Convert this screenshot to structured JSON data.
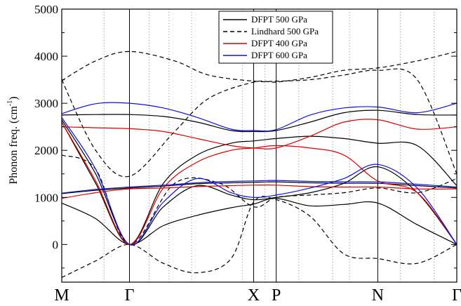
{
  "chart_data": {
    "type": "line",
    "ylabel_main": "Phonon freq. (cm",
    "ylabel_sup": "-1",
    "ylabel_close": ")",
    "ylim": [
      -800,
      5000
    ],
    "xlim": [
      0,
      6.2
    ],
    "yticks": [
      0,
      1000,
      2000,
      3000,
      4000,
      5000
    ],
    "grid": "dotted vertical lines",
    "legend_position": "top-center",
    "kpoints": [
      {
        "label": "M",
        "x": 0.0
      },
      {
        "label": "Γ",
        "x": 1.2
      },
      {
        "label": "X",
        "x": 3.4
      },
      {
        "label": "P",
        "x": 3.8
      },
      {
        "label": "N",
        "x": 5.6
      },
      {
        "label": "Γ",
        "x": 7.0
      }
    ],
    "minor_grid_x": [
      0.75,
      1.55,
      1.9,
      2.3,
      3.2,
      3.6,
      4.2,
      4.8,
      5.1,
      6.0,
      6.6
    ],
    "legend": [
      {
        "name": "DFPT 500 GPa",
        "color": "#000000",
        "dash": "solid"
      },
      {
        "name": "Lindhard 500 GPa",
        "color": "#000000",
        "dash": "dashed"
      },
      {
        "name": "DFPT 400 GPa",
        "color": "#e00000",
        "dash": "solid"
      },
      {
        "name": "DFPT 600 GPa",
        "color": "#1010e0",
        "dash": "solid"
      }
    ],
    "series": [
      {
        "group": "DFPT 500 GPa",
        "x": [
          0,
          0.6,
          1.2,
          1.8,
          2.4,
          3.0,
          3.4,
          3.8,
          4.4,
          5.0,
          5.6,
          6.3,
          7.0
        ],
        "y": [
          880,
          550,
          0,
          400,
          620,
          780,
          860,
          980,
          820,
          850,
          880,
          420,
          0
        ]
      },
      {
        "group": "DFPT 500 GPa",
        "x": [
          0,
          0.6,
          1.2,
          1.8,
          2.4,
          3.0,
          3.4,
          3.8,
          4.4,
          5.0,
          5.6,
          6.3,
          7.0
        ],
        "y": [
          1080,
          1150,
          1200,
          1240,
          1290,
          1310,
          1320,
          1330,
          1310,
          1300,
          1300,
          1250,
          1200
        ]
      },
      {
        "group": "DFPT 500 GPa",
        "x": [
          0,
          0.6,
          1.2,
          1.8,
          2.4,
          3.0,
          3.4,
          3.8,
          4.4,
          5.0,
          5.6,
          6.3,
          7.0
        ],
        "y": [
          2750,
          2760,
          2760,
          2720,
          2600,
          2420,
          2400,
          2420,
          2600,
          2800,
          2850,
          2760,
          2750
        ]
      },
      {
        "group": "DFPT 500 GPa",
        "x": [
          0,
          0.6,
          1.2,
          1.8,
          2.4,
          3.0,
          3.4,
          3.8,
          4.4,
          5.0,
          5.6,
          6.3,
          7.0
        ],
        "y": [
          2650,
          1500,
          0,
          800,
          1250,
          1050,
          950,
          1000,
          1100,
          1300,
          1650,
          1100,
          0
        ]
      },
      {
        "group": "DFPT 500 GPa",
        "x": [
          0,
          0.6,
          1.2,
          1.8,
          2.4,
          3.0,
          3.4,
          3.8,
          4.4,
          5.0,
          5.6,
          6.3,
          7.0
        ],
        "y": [
          2600,
          1300,
          0,
          1300,
          1900,
          2150,
          2200,
          2250,
          2300,
          2250,
          2150,
          2100,
          1250
        ]
      },
      {
        "group": "Lindhard 500 GPa",
        "x": [
          0,
          0.6,
          1.2,
          2.0,
          2.6,
          3.4,
          3.8,
          4.4,
          5.0,
          5.6,
          6.3,
          7.0
        ],
        "y": [
          3500,
          2000,
          1450,
          2400,
          3100,
          3450,
          3450,
          3550,
          3700,
          3750,
          3900,
          4100
        ]
      },
      {
        "group": "Lindhard 500 GPa",
        "x": [
          0,
          0.6,
          1.2,
          2.0,
          2.6,
          3.4,
          3.8,
          4.4,
          5.0,
          5.6,
          6.3,
          7.0
        ],
        "y": [
          3480,
          3900,
          4100,
          3900,
          3600,
          3470,
          3470,
          3500,
          3600,
          3700,
          3500,
          1500
        ]
      },
      {
        "group": "Lindhard 500 GPa",
        "x": [
          0,
          0.6,
          1.2,
          1.8,
          2.4,
          3.0,
          3.4,
          3.8,
          4.4,
          5.0,
          5.6,
          6.3,
          7.0
        ],
        "y": [
          -700,
          -350,
          0,
          -400,
          -600,
          -300,
          900,
          950,
          600,
          -200,
          -300,
          -400,
          0
        ]
      },
      {
        "group": "Lindhard 500 GPa",
        "x": [
          0,
          0.6,
          1.2,
          2.0,
          2.8,
          3.4,
          3.8,
          4.4,
          5.0,
          5.6,
          6.3,
          7.0
        ],
        "y": [
          1900,
          1600,
          0,
          1300,
          1300,
          800,
          1000,
          1050,
          1100,
          1200,
          1100,
          1400
        ]
      },
      {
        "group": "DFPT 400 GPa",
        "x": [
          0,
          0.6,
          1.2,
          1.8,
          2.4,
          3.0,
          3.4,
          3.8,
          4.4,
          5.0,
          5.6,
          6.3,
          7.0
        ],
        "y": [
          2500,
          2480,
          2460,
          2400,
          2250,
          2100,
          2050,
          2050,
          2300,
          2600,
          2650,
          2450,
          2500
        ]
      },
      {
        "group": "DFPT 400 GPa",
        "x": [
          0,
          0.6,
          1.2,
          1.8,
          2.4,
          3.0,
          3.4,
          3.8,
          4.4,
          5.0,
          5.6,
          6.3,
          7.0
        ],
        "y": [
          980,
          1100,
          1180,
          1200,
          1230,
          1250,
          1260,
          1260,
          1230,
          1220,
          1220,
          1180,
          1180
        ]
      },
      {
        "group": "DFPT 400 GPa",
        "x": [
          0,
          0.6,
          1.2,
          1.8,
          2.4,
          3.0,
          3.4,
          3.8,
          4.4,
          5.0,
          5.6,
          6.3,
          7.0
        ],
        "y": [
          2600,
          1350,
          0,
          1200,
          1750,
          2000,
          2050,
          2100,
          2050,
          1900,
          1350,
          1100,
          0
        ]
      },
      {
        "group": "DFPT 600 GPa",
        "x": [
          0,
          0.6,
          1.2,
          1.8,
          2.4,
          3.0,
          3.4,
          3.8,
          4.4,
          5.0,
          5.6,
          6.3,
          7.0
        ],
        "y": [
          2780,
          2990,
          3000,
          2900,
          2700,
          2450,
          2420,
          2440,
          2750,
          2900,
          2920,
          2800,
          3000
        ]
      },
      {
        "group": "DFPT 600 GPa",
        "x": [
          0,
          0.6,
          1.2,
          1.8,
          2.4,
          3.0,
          3.4,
          3.8,
          4.4,
          5.0,
          5.6,
          6.3,
          7.0
        ],
        "y": [
          1090,
          1170,
          1220,
          1260,
          1310,
          1340,
          1350,
          1360,
          1340,
          1330,
          1330,
          1280,
          1220
        ]
      },
      {
        "group": "DFPT 600 GPa",
        "x": [
          0,
          0.6,
          1.2,
          1.8,
          2.4,
          3.0,
          3.4,
          3.8,
          4.4,
          5.0,
          5.6,
          6.3,
          7.0
        ],
        "y": [
          2700,
          1600,
          0,
          900,
          1400,
          1100,
          1000,
          1050,
          1200,
          1400,
          1700,
          1200,
          0
        ]
      }
    ]
  }
}
